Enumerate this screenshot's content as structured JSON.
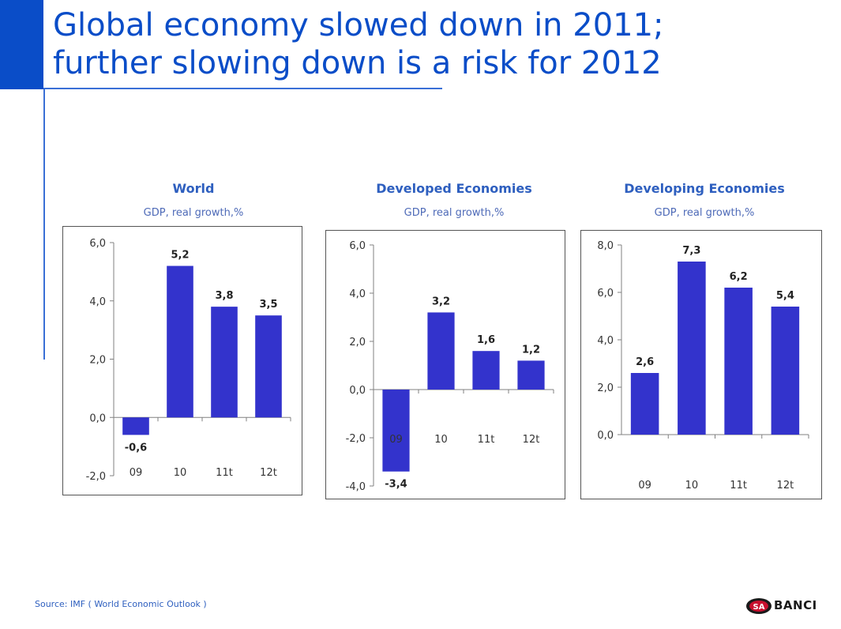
{
  "title": {
    "line1": "Global economy slowed down in 2011;",
    "line2": "further slowing down is a risk for 2012"
  },
  "source": "Source: IMF ( World Economic Outlook )",
  "logo": {
    "mark": "SA",
    "wordmark": "BANCI"
  },
  "colors": {
    "bar": "#3333CC",
    "accent": "#0A4DC8",
    "title": "#0A4DC8",
    "chart_title": "#2E5FBF"
  },
  "chart_data": [
    {
      "type": "bar",
      "title": "World",
      "subtitle": "GDP, real growth,%",
      "categories": [
        "09",
        "10",
        "11t",
        "12t"
      ],
      "values": [
        -0.6,
        5.2,
        3.8,
        3.5
      ],
      "value_labels": [
        "-0,6",
        "5,2",
        "3,8",
        "3,5"
      ],
      "ylim": [
        -2,
        6
      ],
      "yticks": [
        -2,
        0,
        2,
        4,
        6
      ],
      "ytick_labels": [
        "-2,0",
        "0,0",
        "2,0",
        "4,0",
        "6,0"
      ],
      "category_axis_position": "low",
      "xlabel": "",
      "ylabel": "",
      "grid": false
    },
    {
      "type": "bar",
      "title": "Developed Economies",
      "subtitle": "GDP, real growth,%",
      "categories": [
        "09",
        "10",
        "11t",
        "12t"
      ],
      "values": [
        -3.4,
        3.2,
        1.6,
        1.2
      ],
      "value_labels": [
        "-3,4",
        "3,2",
        "1,6",
        "1,2"
      ],
      "ylim": [
        -4,
        6
      ],
      "yticks": [
        -4,
        -2,
        0,
        2,
        4,
        6
      ],
      "ytick_labels": [
        "-4,0",
        "-2,0",
        "0,0",
        "2,0",
        "4,0",
        "6,0"
      ],
      "category_axis_position": "below-zero",
      "xlabel": "",
      "ylabel": "",
      "grid": false
    },
    {
      "type": "bar",
      "title": "Developing Economies",
      "subtitle": "GDP, real growth,%",
      "categories": [
        "09",
        "10",
        "11t",
        "12t"
      ],
      "values": [
        2.6,
        7.3,
        6.2,
        5.4
      ],
      "value_labels": [
        "2,6",
        "7,3",
        "6,2",
        "5,4"
      ],
      "ylim": [
        0,
        8
      ],
      "yticks": [
        0,
        2,
        4,
        6,
        8
      ],
      "ytick_labels": [
        "0,0",
        "2,0",
        "4,0",
        "6,0",
        "8,0"
      ],
      "category_axis_position": "bottom-gap",
      "xlabel": "",
      "ylabel": "",
      "grid": false
    }
  ]
}
